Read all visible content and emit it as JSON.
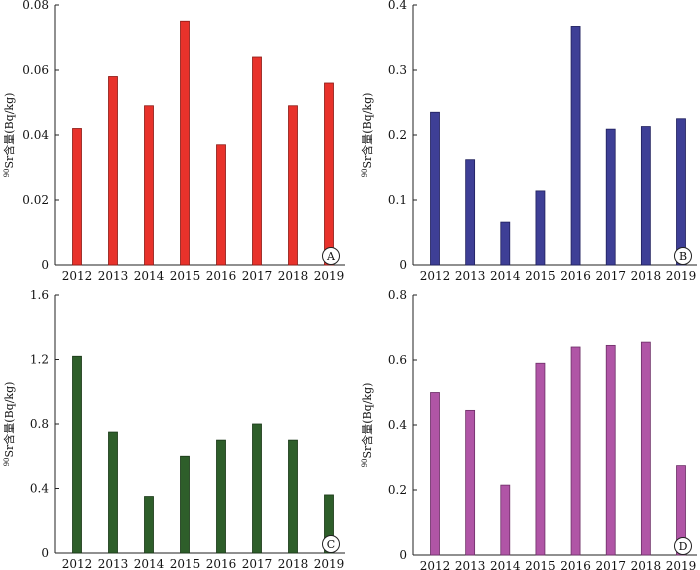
{
  "chart_data": [
    {
      "type": "bar",
      "panel": "A",
      "categories": [
        "2012",
        "2013",
        "2014",
        "2015",
        "2016",
        "2017",
        "2018",
        "2019"
      ],
      "values": [
        0.042,
        0.058,
        0.049,
        0.075,
        0.037,
        0.064,
        0.049,
        0.056
      ],
      "ylabel_sup": "90",
      "ylabel": "Sr含量(Bq/kg)",
      "ylim": [
        0,
        0.08
      ],
      "yticks": [
        "0",
        "0.02",
        "0.04",
        "0.06",
        "0.08"
      ],
      "grid": false,
      "bar_color": "#e8322b",
      "bar_edge": "#8a1a14"
    },
    {
      "type": "bar",
      "panel": "B",
      "categories": [
        "2012",
        "2013",
        "2014",
        "2015",
        "2016",
        "2017",
        "2018",
        "2019"
      ],
      "values": [
        0.235,
        0.162,
        0.066,
        0.114,
        0.367,
        0.209,
        0.213,
        0.225
      ],
      "ylabel_sup": "90",
      "ylabel": "Sr含量(Bq/kg)",
      "ylim": [
        0,
        0.4
      ],
      "yticks": [
        "0",
        "0.1",
        "0.2",
        "0.3",
        "0.4"
      ],
      "grid": false,
      "bar_color": "#3e3f96",
      "bar_edge": "#1f1f5c"
    },
    {
      "type": "bar",
      "panel": "C",
      "categories": [
        "2012",
        "2013",
        "2014",
        "2015",
        "2016",
        "2017",
        "2018",
        "2019"
      ],
      "values": [
        1.22,
        0.75,
        0.35,
        0.6,
        0.7,
        0.8,
        0.7,
        0.36
      ],
      "ylabel_sup": "90",
      "ylabel": "Sr含量(Bq/kg)",
      "ylim": [
        0,
        1.6
      ],
      "yticks": [
        "0",
        "0.4",
        "0.8",
        "1.2",
        "1.6"
      ],
      "grid": false,
      "bar_color": "#2e5e2a",
      "bar_edge": "#183616"
    },
    {
      "type": "bar",
      "panel": "D",
      "categories": [
        "2012",
        "2013",
        "2014",
        "2015",
        "2016",
        "2017",
        "2018",
        "2019"
      ],
      "values": [
        0.5,
        0.445,
        0.215,
        0.59,
        0.64,
        0.645,
        0.655,
        0.275
      ],
      "ylabel_sup": "90",
      "ylabel": "Sr含量(Bq/kg)",
      "ylim": [
        0,
        0.8
      ],
      "yticks": [
        "0",
        "0.2",
        "0.4",
        "0.6",
        "0.8"
      ],
      "grid": false,
      "bar_color": "#b055a6",
      "bar_edge": "#6c2e66"
    }
  ]
}
